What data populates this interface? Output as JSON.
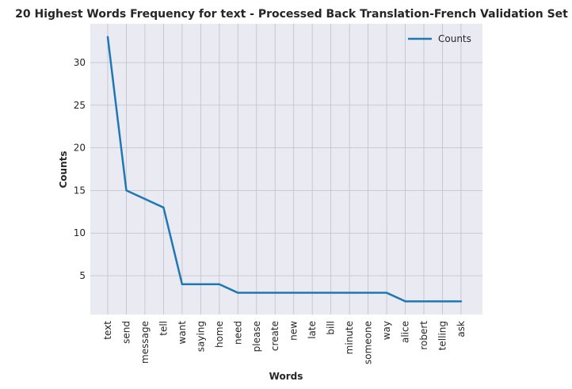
{
  "chart_data": {
    "type": "line",
    "title": "20 Highest Words Frequency for text - Processed Back Translation-French Validation Set",
    "xlabel": "Words",
    "ylabel": "Counts",
    "categories": [
      "text",
      "send",
      "message",
      "tell",
      "want",
      "saying",
      "home",
      "need",
      "please",
      "create",
      "new",
      "late",
      "bill",
      "minute",
      "someone",
      "way",
      "alice",
      "robert",
      "telling",
      "ask"
    ],
    "series": [
      {
        "name": "Counts",
        "values": [
          33,
          15,
          14,
          13,
          4,
          4,
          4,
          3,
          3,
          3,
          3,
          3,
          3,
          3,
          3,
          3,
          2,
          2,
          2,
          2
        ]
      }
    ],
    "yticks": [
      5,
      10,
      15,
      20,
      25,
      30
    ],
    "ylim": [
      0.45,
      34.55
    ],
    "grid": true,
    "legend_position": "top-right",
    "colors": {
      "line": "#1f77b4",
      "plot_background": "#eaeaf2",
      "grid": "#c0c0c8",
      "text": "#262626"
    }
  }
}
